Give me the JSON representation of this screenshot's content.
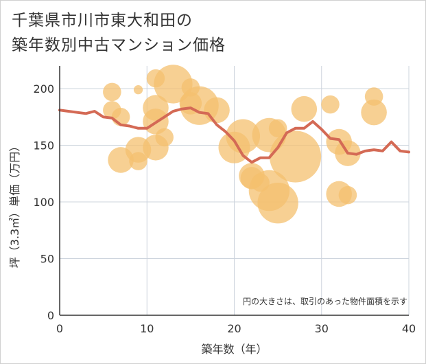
{
  "page": {
    "title_line1": "千葉県市川市東大和田の",
    "title_line2": "築年数別中古マンション価格"
  },
  "chart_data": {
    "type": "scatter",
    "xlabel": "築年数（年）",
    "ylabel": "坪（3.3㎡）単価（万円）",
    "xlim": [
      0,
      40
    ],
    "ylim": [
      0,
      220
    ],
    "xticks": [
      0,
      10,
      20,
      30,
      40
    ],
    "yticks": [
      0,
      50,
      100,
      150,
      200
    ],
    "grid": true,
    "note": "円の大きさは、取引のあった物件面積を示す",
    "colors": {
      "bubble": "#f4c06f",
      "line": "#d46a55",
      "grid": "#cdd4dd",
      "axis": "#333333"
    },
    "bubbles": [
      {
        "x": 6,
        "y": 197,
        "size": 2
      },
      {
        "x": 6,
        "y": 181,
        "size": 2
      },
      {
        "x": 7,
        "y": 175,
        "size": 2
      },
      {
        "x": 7,
        "y": 137,
        "size": 4
      },
      {
        "x": 9,
        "y": 199,
        "size": 0.5
      },
      {
        "x": 9,
        "y": 146,
        "size": 4
      },
      {
        "x": 9,
        "y": 136,
        "size": 2
      },
      {
        "x": 11,
        "y": 209,
        "size": 2
      },
      {
        "x": 11,
        "y": 183,
        "size": 4
      },
      {
        "x": 11,
        "y": 171,
        "size": 4
      },
      {
        "x": 11,
        "y": 148,
        "size": 4
      },
      {
        "x": 12,
        "y": 157,
        "size": 2
      },
      {
        "x": 13,
        "y": 204,
        "size": 9
      },
      {
        "x": 15,
        "y": 201,
        "size": 2
      },
      {
        "x": 15,
        "y": 187,
        "size": 3
      },
      {
        "x": 16,
        "y": 185,
        "size": 9
      },
      {
        "x": 18,
        "y": 181,
        "size": 4
      },
      {
        "x": 20,
        "y": 148,
        "size": 6
      },
      {
        "x": 21,
        "y": 158,
        "size": 7
      },
      {
        "x": 22,
        "y": 123,
        "size": 4
      },
      {
        "x": 22,
        "y": 121,
        "size": 3
      },
      {
        "x": 23,
        "y": 117,
        "size": 2
      },
      {
        "x": 24,
        "y": 159,
        "size": 7
      },
      {
        "x": 24,
        "y": 110,
        "size": 10
      },
      {
        "x": 25,
        "y": 165,
        "size": 2
      },
      {
        "x": 25,
        "y": 99,
        "size": 10
      },
      {
        "x": 27,
        "y": 140,
        "size": 16
      },
      {
        "x": 28,
        "y": 182,
        "size": 4
      },
      {
        "x": 31,
        "y": 186,
        "size": 2
      },
      {
        "x": 32,
        "y": 153,
        "size": 4
      },
      {
        "x": 32,
        "y": 107,
        "size": 4
      },
      {
        "x": 33,
        "y": 143,
        "size": 4
      },
      {
        "x": 33,
        "y": 106,
        "size": 2
      },
      {
        "x": 36,
        "y": 193,
        "size": 2
      },
      {
        "x": 36,
        "y": 179,
        "size": 4
      }
    ],
    "trend": [
      {
        "x": 0,
        "y": 181
      },
      {
        "x": 1,
        "y": 180
      },
      {
        "x": 2,
        "y": 179
      },
      {
        "x": 3,
        "y": 178
      },
      {
        "x": 4,
        "y": 180
      },
      {
        "x": 5,
        "y": 175
      },
      {
        "x": 6,
        "y": 174
      },
      {
        "x": 7,
        "y": 168
      },
      {
        "x": 8,
        "y": 167
      },
      {
        "x": 9,
        "y": 165
      },
      {
        "x": 10,
        "y": 165
      },
      {
        "x": 11,
        "y": 170
      },
      {
        "x": 12,
        "y": 175
      },
      {
        "x": 13,
        "y": 180
      },
      {
        "x": 14,
        "y": 182
      },
      {
        "x": 15,
        "y": 183
      },
      {
        "x": 16,
        "y": 179
      },
      {
        "x": 17,
        "y": 178
      },
      {
        "x": 18,
        "y": 168
      },
      {
        "x": 19,
        "y": 162
      },
      {
        "x": 20,
        "y": 154
      },
      {
        "x": 21,
        "y": 141
      },
      {
        "x": 22,
        "y": 135
      },
      {
        "x": 23,
        "y": 139
      },
      {
        "x": 24,
        "y": 139
      },
      {
        "x": 25,
        "y": 148
      },
      {
        "x": 26,
        "y": 161
      },
      {
        "x": 27,
        "y": 165
      },
      {
        "x": 28,
        "y": 165
      },
      {
        "x": 29,
        "y": 171
      },
      {
        "x": 30,
        "y": 164
      },
      {
        "x": 31,
        "y": 156
      },
      {
        "x": 32,
        "y": 155
      },
      {
        "x": 33,
        "y": 143
      },
      {
        "x": 34,
        "y": 142
      },
      {
        "x": 35,
        "y": 145
      },
      {
        "x": 36,
        "y": 146
      },
      {
        "x": 37,
        "y": 145
      },
      {
        "x": 38,
        "y": 153
      },
      {
        "x": 39,
        "y": 145
      },
      {
        "x": 40,
        "y": 144
      }
    ]
  }
}
